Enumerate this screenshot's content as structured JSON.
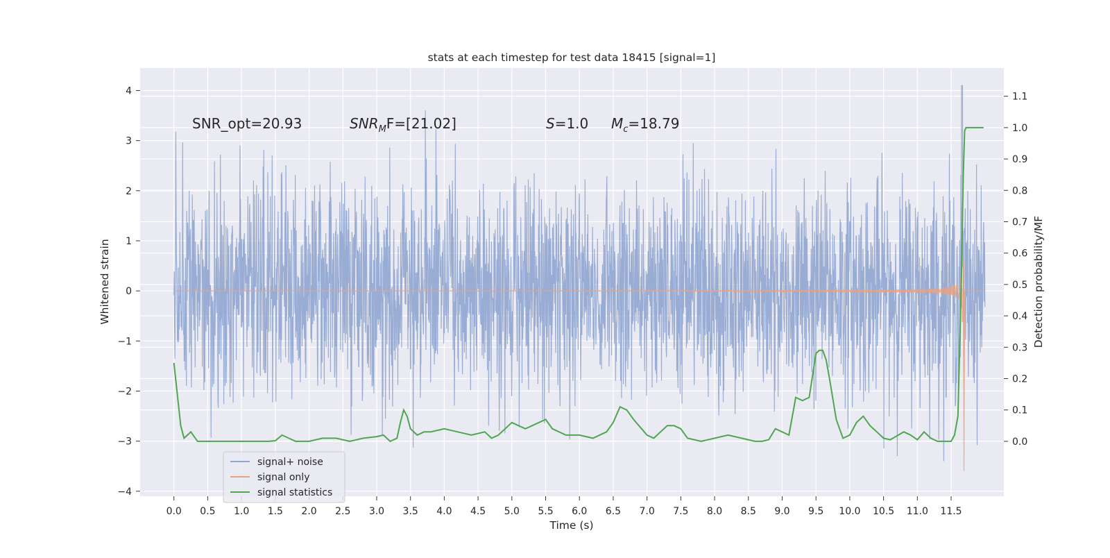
{
  "chart_data": {
    "type": "line",
    "title": "stats at each timestep for test data 18415 [signal=1]",
    "xlabel": "Time (s)",
    "ylabel": "Whitened strain",
    "y2label": "Detection probability/MF",
    "xlim": [
      -0.5,
      12.28
    ],
    "ylim": [
      -4.1,
      4.45
    ],
    "y2lim": [
      -0.175,
      1.19
    ],
    "x_ticks": [
      "0.0",
      "0.5",
      "1.0",
      "1.5",
      "2.0",
      "2.5",
      "3.0",
      "3.5",
      "4.0",
      "4.5",
      "5.0",
      "5.5",
      "6.0",
      "6.5",
      "7.0",
      "7.5",
      "8.0",
      "8.5",
      "9.0",
      "9.5",
      "10.0",
      "10.5",
      "11.0",
      "11.5"
    ],
    "y_ticks": [
      "4",
      "3",
      "2",
      "1",
      "0",
      "−1",
      "−2",
      "−3",
      "−4"
    ],
    "y2_ticks": [
      "1.1",
      "1.0",
      "0.9",
      "0.8",
      "0.7",
      "0.6",
      "0.5",
      "0.4",
      "0.3",
      "0.2",
      "0.1",
      "0.0"
    ],
    "grid": true,
    "legend_position": "lower-left",
    "annotations": {
      "snr_opt": "SNR_opt=20.93",
      "snr_mf_label": "SNR",
      "snr_mf_sub": "M",
      "snr_mf_value": "F=[21.02]",
      "s_label": "S",
      "s_value": "=1.0",
      "mc_label": "M",
      "mc_sub": "c",
      "mc_value": "=18.79"
    },
    "series": [
      {
        "name": "signal+ noise",
        "color": "#8fa5d0",
        "description_stats": {
          "x_range": [
            0.0,
            12.0
          ],
          "approx_amplitude_std": 1.0,
          "y_max": 4.1,
          "y_min": -3.5
        }
      },
      {
        "name": "signal only",
        "color": "#e8a282",
        "description_stats": {
          "x_range": [
            0.0,
            11.7
          ],
          "merger_time": 11.68,
          "peak_amplitude": 3.3
        }
      },
      {
        "name": "signal statistics",
        "color": "#4ea64e",
        "axis": "right",
        "x": [
          0.0,
          0.05,
          0.1,
          0.15,
          0.2,
          0.25,
          0.3,
          0.35,
          0.4,
          0.5,
          0.7,
          1.0,
          1.2,
          1.4,
          1.5,
          1.6,
          1.7,
          1.8,
          2.0,
          2.2,
          2.4,
          2.6,
          2.8,
          3.0,
          3.1,
          3.2,
          3.3,
          3.35,
          3.4,
          3.45,
          3.5,
          3.6,
          3.7,
          3.8,
          4.0,
          4.2,
          4.4,
          4.6,
          4.7,
          4.8,
          4.9,
          5.0,
          5.1,
          5.2,
          5.4,
          5.5,
          5.6,
          5.8,
          6.0,
          6.2,
          6.4,
          6.5,
          6.6,
          6.7,
          6.8,
          7.0,
          7.1,
          7.2,
          7.3,
          7.4,
          7.5,
          7.6,
          7.8,
          8.0,
          8.2,
          8.4,
          8.6,
          8.7,
          8.8,
          8.9,
          9.0,
          9.1,
          9.2,
          9.3,
          9.4,
          9.5,
          9.55,
          9.6,
          9.65,
          9.7,
          9.8,
          9.9,
          10.0,
          10.1,
          10.2,
          10.3,
          10.4,
          10.5,
          10.6,
          10.8,
          10.9,
          11.0,
          11.1,
          11.2,
          11.3,
          11.4,
          11.5,
          11.55,
          11.6,
          11.65,
          11.68,
          11.7,
          11.72,
          11.75,
          11.8,
          11.85,
          11.9,
          11.98
        ],
        "y": [
          0.25,
          0.15,
          0.05,
          0.01,
          0.02,
          0.03,
          0.015,
          0.0,
          0.0,
          0.0,
          0.0,
          0.0,
          0.0,
          0.0,
          0.002,
          0.02,
          0.01,
          0.0,
          0.0,
          0.01,
          0.01,
          0.0,
          0.01,
          0.015,
          0.02,
          0.0,
          0.01,
          0.06,
          0.1,
          0.08,
          0.04,
          0.02,
          0.03,
          0.03,
          0.04,
          0.03,
          0.02,
          0.03,
          0.01,
          0.02,
          0.04,
          0.06,
          0.05,
          0.04,
          0.06,
          0.07,
          0.04,
          0.02,
          0.02,
          0.01,
          0.03,
          0.06,
          0.11,
          0.1,
          0.07,
          0.02,
          0.01,
          0.03,
          0.05,
          0.05,
          0.04,
          0.01,
          0.0,
          0.01,
          0.02,
          0.01,
          0.0,
          0.0,
          0.005,
          0.04,
          0.03,
          0.02,
          0.14,
          0.13,
          0.14,
          0.28,
          0.29,
          0.29,
          0.26,
          0.2,
          0.07,
          0.01,
          0.02,
          0.06,
          0.08,
          0.05,
          0.03,
          0.01,
          0.005,
          0.03,
          0.02,
          0.005,
          0.03,
          0.01,
          0.0,
          0.0,
          0.0,
          0.02,
          0.08,
          0.5,
          0.85,
          0.99,
          1.0,
          1.0,
          1.0,
          1.0,
          1.0,
          1.0
        ]
      }
    ]
  }
}
